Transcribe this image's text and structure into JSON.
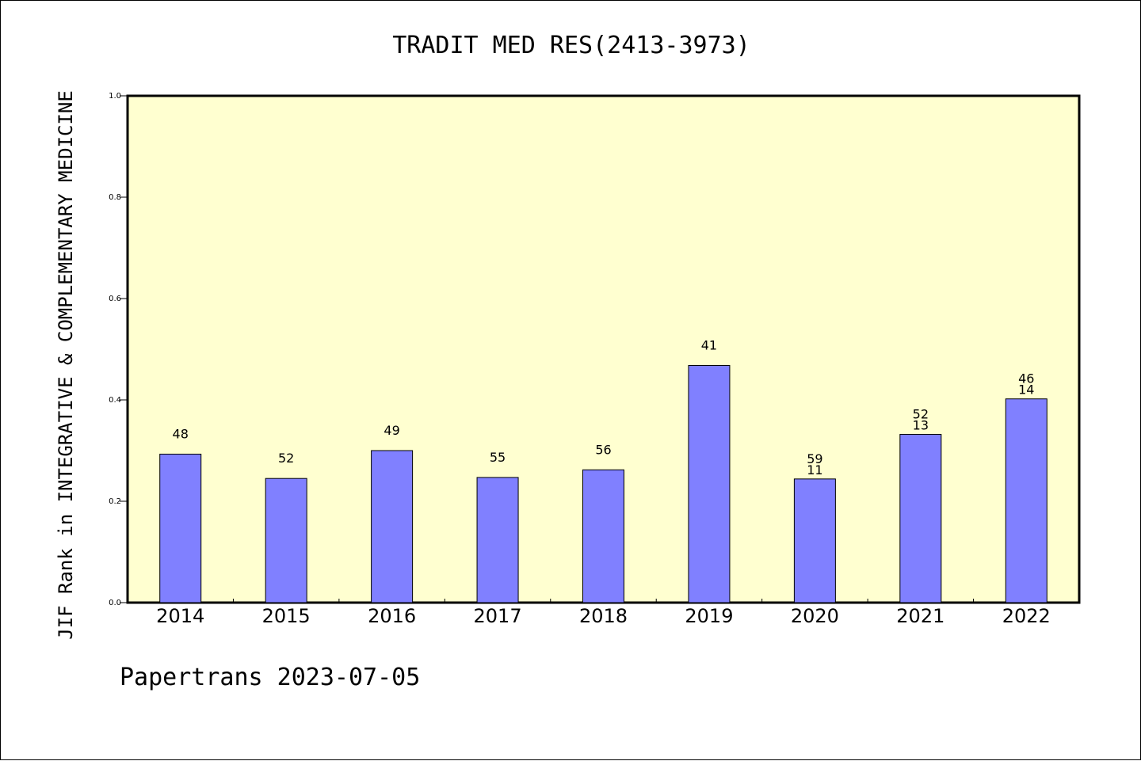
{
  "chart_data": {
    "type": "bar",
    "title": "TRADIT MED RES(2413-3973)",
    "ylabel": "JIF Rank in INTEGRATIVE & COMPLEMENTARY MEDICINE",
    "xlabel": "",
    "ylim": [
      0,
      1.0
    ],
    "yticks": [
      "0.0",
      "0.2",
      "0.4",
      "0.6",
      "0.8",
      "1.0"
    ],
    "categories": [
      "2014",
      "2015",
      "2016",
      "2017",
      "2018",
      "2019",
      "2020",
      "2021",
      "2022"
    ],
    "values": [
      0.293,
      0.245,
      0.3,
      0.247,
      0.262,
      0.468,
      0.244,
      0.332,
      0.402
    ],
    "labels": [
      [
        "48"
      ],
      [
        "52"
      ],
      [
        "49"
      ],
      [
        "55"
      ],
      [
        "56"
      ],
      [
        "41"
      ],
      [
        "59",
        "11"
      ],
      [
        "52",
        "13"
      ],
      [
        "46",
        "14"
      ]
    ],
    "grid": false,
    "colors": {
      "bar": "#8080ff",
      "plot_bg": "#ffffd0"
    }
  },
  "footer": "Papertrans 2023-07-05"
}
